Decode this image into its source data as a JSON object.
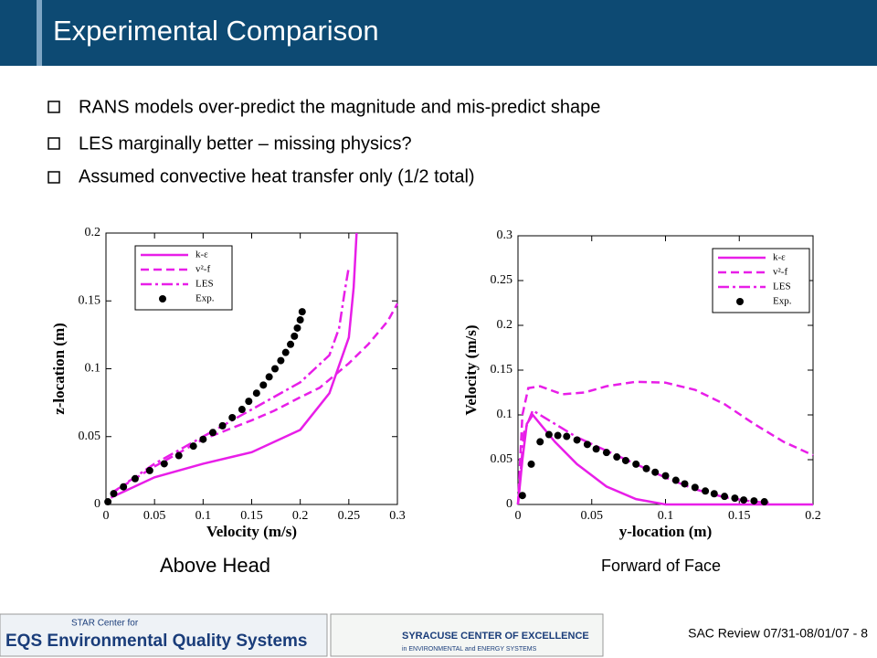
{
  "header": {
    "title": "Experimental Comparison"
  },
  "bullets": [
    "RANS models over-predict the magnitude and mis-predict shape",
    "LES marginally better – missing physics?",
    "Assumed convective heat transfer only (1/2 total)"
  ],
  "footer": {
    "logo_left_top": "STAR Center for",
    "logo_left": "EQS Environmental Quality Systems",
    "logo_right": "SYRACUSE CENTER OF EXCELLENCE",
    "logo_right_sub": "in ENVIRONMENTAL and ENERGY SYSTEMS",
    "slide_note": "SAC Review 07/31-08/01/07 - 8"
  },
  "chart_data": [
    {
      "type": "line",
      "caption": "Above Head",
      "x_label": "Velocity (m/s)",
      "y_label": "z-location (m)",
      "xlim": [
        0,
        0.3
      ],
      "xticks": [
        0,
        0.05,
        0.1,
        0.15,
        0.2,
        0.25,
        0.3
      ],
      "ylim": [
        0,
        0.2
      ],
      "yticks": [
        0,
        0.05,
        0.1,
        0.15,
        0.2
      ],
      "legend": "upper left",
      "series": [
        {
          "name": "k-ε",
          "color": "#e81ee8",
          "style": "solid",
          "x": [
            0.005,
            0.05,
            0.1,
            0.15,
            0.2,
            0.23,
            0.25,
            0.255,
            0.258
          ],
          "values": [
            0.005,
            0.02,
            0.03,
            0.0385,
            0.055,
            0.082,
            0.123,
            0.16,
            0.2
          ]
        },
        {
          "name": "v²-f",
          "color": "#e81ee8",
          "style": "dashed",
          "x": [
            0.005,
            0.05,
            0.1,
            0.15,
            0.173,
            0.2,
            0.22,
            0.25,
            0.27,
            0.29,
            0.3
          ],
          "values": [
            0.008,
            0.028,
            0.048,
            0.062,
            0.069,
            0.079,
            0.086,
            0.104,
            0.118,
            0.135,
            0.148
          ]
        },
        {
          "name": "LES",
          "color": "#e81ee8",
          "style": "dashdot",
          "x": [
            0.005,
            0.05,
            0.1,
            0.15,
            0.2,
            0.23,
            0.24,
            0.246,
            0.25
          ],
          "values": [
            0.008,
            0.03,
            0.05,
            0.07,
            0.09,
            0.11,
            0.13,
            0.158,
            0.175
          ]
        },
        {
          "name": "Exp.",
          "color": "#000000",
          "style": "marker",
          "x": [
            0.002,
            0.008,
            0.018,
            0.03,
            0.045,
            0.06,
            0.075,
            0.09,
            0.1,
            0.11,
            0.12,
            0.13,
            0.14,
            0.147,
            0.155,
            0.162,
            0.168,
            0.174,
            0.18,
            0.185,
            0.19,
            0.194,
            0.197,
            0.2,
            0.202
          ],
          "values": [
            0.002,
            0.008,
            0.013,
            0.019,
            0.025,
            0.03,
            0.036,
            0.043,
            0.048,
            0.053,
            0.058,
            0.064,
            0.07,
            0.076,
            0.082,
            0.088,
            0.094,
            0.1,
            0.106,
            0.112,
            0.118,
            0.124,
            0.13,
            0.136,
            0.142
          ]
        }
      ]
    },
    {
      "type": "line",
      "caption": "Forward of Face",
      "x_label": "y-location (m)",
      "y_label": "Velocity (m/s)",
      "xlim": [
        0,
        0.2
      ],
      "xticks": [
        0,
        0.05,
        0.1,
        0.15,
        0.2
      ],
      "ylim": [
        0,
        0.3
      ],
      "yticks": [
        0,
        0.05,
        0.1,
        0.15,
        0.2,
        0.25,
        0.3
      ],
      "legend": "upper right",
      "series": [
        {
          "name": "k-ε",
          "color": "#e81ee8",
          "style": "solid",
          "x": [
            0,
            0.003,
            0.006,
            0.01,
            0.015,
            0.025,
            0.04,
            0.06,
            0.08,
            0.1,
            0.2
          ],
          "values": [
            0,
            0.05,
            0.09,
            0.1,
            0.09,
            0.07,
            0.045,
            0.02,
            0.006,
            0,
            0
          ]
        },
        {
          "name": "v²-f",
          "color": "#e81ee8",
          "style": "dashed",
          "x": [
            0,
            0.003,
            0.007,
            0.015,
            0.03,
            0.045,
            0.06,
            0.08,
            0.1,
            0.12,
            0.14,
            0.16,
            0.18,
            0.2
          ],
          "values": [
            0,
            0.1,
            0.13,
            0.132,
            0.123,
            0.125,
            0.132,
            0.137,
            0.136,
            0.128,
            0.112,
            0.09,
            0.07,
            0.055
          ]
        },
        {
          "name": "LES",
          "color": "#e81ee8",
          "style": "dashdot",
          "x": [
            0,
            0.004,
            0.01,
            0.02,
            0.04,
            0.06,
            0.08,
            0.1,
            0.12,
            0.14,
            0.16,
            0.17
          ],
          "values": [
            0,
            0.08,
            0.105,
            0.095,
            0.075,
            0.06,
            0.045,
            0.03,
            0.017,
            0.008,
            0.003,
            0.002
          ]
        },
        {
          "name": "Exp.",
          "color": "#000000",
          "style": "marker",
          "x": [
            0.003,
            0.009,
            0.015,
            0.021,
            0.027,
            0.033,
            0.04,
            0.047,
            0.053,
            0.06,
            0.067,
            0.073,
            0.08,
            0.087,
            0.093,
            0.1,
            0.107,
            0.113,
            0.12,
            0.127,
            0.133,
            0.14,
            0.147,
            0.153,
            0.16,
            0.167
          ],
          "values": [
            0.01,
            0.045,
            0.07,
            0.078,
            0.077,
            0.076,
            0.072,
            0.067,
            0.062,
            0.058,
            0.053,
            0.049,
            0.045,
            0.04,
            0.036,
            0.032,
            0.027,
            0.023,
            0.019,
            0.015,
            0.012,
            0.009,
            0.007,
            0.005,
            0.004,
            0.003
          ]
        }
      ]
    }
  ]
}
